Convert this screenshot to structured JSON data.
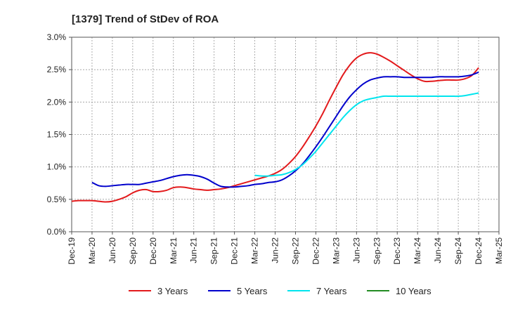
{
  "chart_data": {
    "type": "line",
    "title": "[1379]  Trend of StDev of ROA",
    "xlabel": "",
    "ylabel": "",
    "x_ticks": [
      "Dec-19",
      "Mar-20",
      "Jun-20",
      "Sep-20",
      "Dec-20",
      "Mar-21",
      "Jun-21",
      "Sep-21",
      "Dec-21",
      "Mar-22",
      "Jun-22",
      "Sep-22",
      "Dec-22",
      "Mar-23",
      "Jun-23",
      "Sep-23",
      "Dec-23",
      "Mar-24",
      "Jun-24",
      "Sep-24",
      "Dec-24",
      "Mar-25"
    ],
    "y_ticks": [
      "0.0%",
      "0.5%",
      "1.0%",
      "1.5%",
      "2.0%",
      "2.5%",
      "3.0%"
    ],
    "ylim": [
      0,
      3.0
    ],
    "grid": true,
    "legend_position": "bottom",
    "series": [
      {
        "name": "3 Years",
        "color": "#e31a1c",
        "points": [
          [
            "Dec-19",
            0.47
          ],
          [
            "Jan-20",
            0.48
          ],
          [
            "Feb-20",
            0.48
          ],
          [
            "Mar-20",
            0.48
          ],
          [
            "Apr-20",
            0.47
          ],
          [
            "May-20",
            0.46
          ],
          [
            "Jun-20",
            0.47
          ],
          [
            "Jul-20",
            0.5
          ],
          [
            "Aug-20",
            0.54
          ],
          [
            "Sep-20",
            0.6
          ],
          [
            "Oct-20",
            0.64
          ],
          [
            "Nov-20",
            0.65
          ],
          [
            "Dec-20",
            0.62
          ],
          [
            "Jan-21",
            0.62
          ],
          [
            "Feb-21",
            0.64
          ],
          [
            "Mar-21",
            0.68
          ],
          [
            "Apr-21",
            0.69
          ],
          [
            "May-21",
            0.68
          ],
          [
            "Jun-21",
            0.66
          ],
          [
            "Jul-21",
            0.65
          ],
          [
            "Aug-21",
            0.64
          ],
          [
            "Sep-21",
            0.65
          ],
          [
            "Oct-21",
            0.66
          ],
          [
            "Nov-21",
            0.68
          ],
          [
            "Dec-21",
            0.71
          ],
          [
            "Jan-22",
            0.74
          ],
          [
            "Feb-22",
            0.77
          ],
          [
            "Mar-22",
            0.8
          ],
          [
            "Apr-22",
            0.83
          ],
          [
            "May-22",
            0.86
          ],
          [
            "Jun-22",
            0.9
          ],
          [
            "Jul-22",
            0.96
          ],
          [
            "Aug-22",
            1.05
          ],
          [
            "Sep-22",
            1.16
          ],
          [
            "Oct-22",
            1.3
          ],
          [
            "Nov-22",
            1.46
          ],
          [
            "Dec-22",
            1.63
          ],
          [
            "Jan-23",
            1.82
          ],
          [
            "Feb-23",
            2.03
          ],
          [
            "Mar-23",
            2.23
          ],
          [
            "Apr-23",
            2.42
          ],
          [
            "May-23",
            2.57
          ],
          [
            "Jun-23",
            2.68
          ],
          [
            "Jul-23",
            2.74
          ],
          [
            "Aug-23",
            2.76
          ],
          [
            "Sep-23",
            2.74
          ],
          [
            "Oct-23",
            2.69
          ],
          [
            "Nov-23",
            2.63
          ],
          [
            "Dec-23",
            2.56
          ],
          [
            "Jan-24",
            2.49
          ],
          [
            "Feb-24",
            2.42
          ],
          [
            "Mar-24",
            2.36
          ],
          [
            "Apr-24",
            2.32
          ],
          [
            "May-24",
            2.32
          ],
          [
            "Jun-24",
            2.33
          ],
          [
            "Jul-24",
            2.34
          ],
          [
            "Aug-24",
            2.34
          ],
          [
            "Sep-24",
            2.34
          ],
          [
            "Oct-24",
            2.36
          ],
          [
            "Nov-24",
            2.41
          ],
          [
            "Dec-24",
            2.53
          ]
        ]
      },
      {
        "name": "5 Years",
        "color": "#0000cc",
        "points": [
          [
            "Mar-20",
            0.76
          ],
          [
            "Apr-20",
            0.71
          ],
          [
            "May-20",
            0.7
          ],
          [
            "Jun-20",
            0.71
          ],
          [
            "Jul-20",
            0.72
          ],
          [
            "Aug-20",
            0.73
          ],
          [
            "Sep-20",
            0.73
          ],
          [
            "Oct-20",
            0.73
          ],
          [
            "Nov-20",
            0.75
          ],
          [
            "Dec-20",
            0.77
          ],
          [
            "Jan-21",
            0.79
          ],
          [
            "Feb-21",
            0.82
          ],
          [
            "Mar-21",
            0.85
          ],
          [
            "Apr-21",
            0.87
          ],
          [
            "May-21",
            0.88
          ],
          [
            "Jun-21",
            0.87
          ],
          [
            "Jul-21",
            0.85
          ],
          [
            "Aug-21",
            0.81
          ],
          [
            "Sep-21",
            0.75
          ],
          [
            "Oct-21",
            0.7
          ],
          [
            "Nov-21",
            0.69
          ],
          [
            "Dec-21",
            0.69
          ],
          [
            "Jan-22",
            0.7
          ],
          [
            "Feb-22",
            0.71
          ],
          [
            "Mar-22",
            0.73
          ],
          [
            "Apr-22",
            0.74
          ],
          [
            "May-22",
            0.76
          ],
          [
            "Jun-22",
            0.77
          ],
          [
            "Jul-22",
            0.8
          ],
          [
            "Aug-22",
            0.86
          ],
          [
            "Sep-22",
            0.94
          ],
          [
            "Oct-22",
            1.04
          ],
          [
            "Nov-22",
            1.17
          ],
          [
            "Dec-22",
            1.31
          ],
          [
            "Jan-23",
            1.46
          ],
          [
            "Feb-23",
            1.62
          ],
          [
            "Mar-23",
            1.78
          ],
          [
            "Apr-23",
            1.94
          ],
          [
            "May-23",
            2.08
          ],
          [
            "Jun-23",
            2.19
          ],
          [
            "Jul-23",
            2.28
          ],
          [
            "Aug-23",
            2.34
          ],
          [
            "Sep-23",
            2.37
          ],
          [
            "Oct-23",
            2.39
          ],
          [
            "Nov-23",
            2.39
          ],
          [
            "Dec-23",
            2.39
          ],
          [
            "Jan-24",
            2.38
          ],
          [
            "Feb-24",
            2.38
          ],
          [
            "Mar-24",
            2.38
          ],
          [
            "Apr-24",
            2.38
          ],
          [
            "May-24",
            2.38
          ],
          [
            "Jun-24",
            2.39
          ],
          [
            "Jul-24",
            2.39
          ],
          [
            "Aug-24",
            2.39
          ],
          [
            "Sep-24",
            2.39
          ],
          [
            "Oct-24",
            2.4
          ],
          [
            "Nov-24",
            2.42
          ],
          [
            "Dec-24",
            2.46
          ]
        ]
      },
      {
        "name": "7 Years",
        "color": "#00e5ee",
        "points": [
          [
            "Mar-22",
            0.87
          ],
          [
            "Apr-22",
            0.86
          ],
          [
            "May-22",
            0.86
          ],
          [
            "Jun-22",
            0.87
          ],
          [
            "Jul-22",
            0.88
          ],
          [
            "Aug-22",
            0.91
          ],
          [
            "Sep-22",
            0.96
          ],
          [
            "Oct-22",
            1.03
          ],
          [
            "Nov-22",
            1.13
          ],
          [
            "Dec-22",
            1.24
          ],
          [
            "Jan-23",
            1.37
          ],
          [
            "Feb-23",
            1.5
          ],
          [
            "Mar-23",
            1.63
          ],
          [
            "Apr-23",
            1.76
          ],
          [
            "May-23",
            1.87
          ],
          [
            "Jun-23",
            1.96
          ],
          [
            "Jul-23",
            2.02
          ],
          [
            "Aug-23",
            2.05
          ],
          [
            "Sep-23",
            2.07
          ],
          [
            "Oct-23",
            2.09
          ],
          [
            "Nov-23",
            2.09
          ],
          [
            "Dec-23",
            2.09
          ],
          [
            "Jan-24",
            2.09
          ],
          [
            "Feb-24",
            2.09
          ],
          [
            "Mar-24",
            2.09
          ],
          [
            "Apr-24",
            2.09
          ],
          [
            "May-24",
            2.09
          ],
          [
            "Jun-24",
            2.09
          ],
          [
            "Jul-24",
            2.09
          ],
          [
            "Aug-24",
            2.09
          ],
          [
            "Sep-24",
            2.09
          ],
          [
            "Oct-24",
            2.1
          ],
          [
            "Nov-24",
            2.12
          ],
          [
            "Dec-24",
            2.14
          ]
        ]
      },
      {
        "name": "10 Years",
        "color": "#228b22",
        "points": []
      }
    ]
  }
}
